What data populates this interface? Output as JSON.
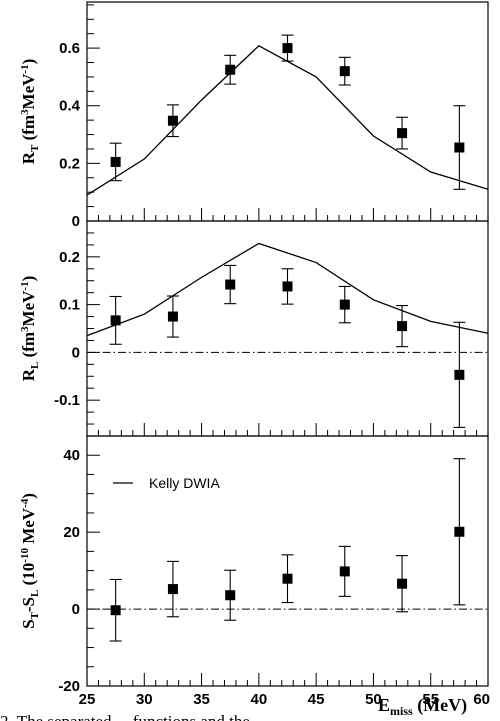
{
  "caption_fragment": "2. The separated ... functions and the",
  "legend": {
    "label": "Kelly DWIA"
  },
  "chart_data": [
    {
      "type": "scatter",
      "panel": "top",
      "ylabel_main": "R",
      "ylabel_sub": "T",
      "ylabel_unit_pre": " (fm",
      "ylabel_unit_sup": "3",
      "ylabel_unit_mid": "MeV",
      "ylabel_unit_sup2": "-1",
      "ylabel_unit_post": ")",
      "ylim": [
        0,
        0.76
      ],
      "yticks": [
        0,
        0.2,
        0.4,
        0.6
      ],
      "ytick_labels": [
        "0",
        "0.2",
        "0.4",
        "0.6"
      ],
      "zero_line": false,
      "series": [
        {
          "kind": "points",
          "x": [
            27.5,
            32.5,
            37.5,
            42.5,
            47.5,
            52.5,
            57.5
          ],
          "y": [
            0.205,
            0.348,
            0.525,
            0.6,
            0.52,
            0.305,
            0.255
          ],
          "err": [
            0.065,
            0.055,
            0.05,
            0.045,
            0.048,
            0.055,
            0.145
          ]
        },
        {
          "kind": "line",
          "name": "Kelly DWIA",
          "x": [
            25,
            30,
            35,
            40,
            45,
            50,
            55,
            60
          ],
          "y": [
            0.09,
            0.215,
            0.42,
            0.608,
            0.5,
            0.295,
            0.17,
            0.11
          ]
        }
      ]
    },
    {
      "type": "scatter",
      "panel": "middle",
      "ylabel_main": "R",
      "ylabel_sub": "L",
      "ylabel_unit_pre": " (fm",
      "ylabel_unit_sup": "3",
      "ylabel_unit_mid": "MeV",
      "ylabel_unit_sup2": "-1",
      "ylabel_unit_post": ")",
      "ylim": [
        -0.175,
        0.275
      ],
      "yticks": [
        -0.1,
        0,
        0.1,
        0.2
      ],
      "ytick_labels": [
        "-0.1",
        "0",
        "0.1",
        "0.2"
      ],
      "zero_line": true,
      "series": [
        {
          "kind": "points",
          "x": [
            27.5,
            32.5,
            37.5,
            42.5,
            47.5,
            52.5,
            57.5
          ],
          "y": [
            0.067,
            0.075,
            0.142,
            0.138,
            0.1,
            0.055,
            -0.047
          ],
          "err": [
            0.05,
            0.043,
            0.04,
            0.037,
            0.038,
            0.043,
            0.11
          ]
        },
        {
          "kind": "line",
          "name": "Kelly DWIA",
          "x": [
            25,
            30,
            35,
            40,
            45,
            50,
            55,
            60
          ],
          "y": [
            0.035,
            0.08,
            0.157,
            0.228,
            0.188,
            0.11,
            0.065,
            0.04
          ]
        }
      ]
    },
    {
      "type": "scatter",
      "panel": "bottom",
      "ylabel_main": "S",
      "ylabel_sub": "T",
      "ylabel_mid": "-S",
      "ylabel_sub2": "L",
      "ylabel_unit_pre": " (10",
      "ylabel_unit_sup": "-10",
      "ylabel_unit_mid": " MeV",
      "ylabel_unit_sup2": "-4",
      "ylabel_unit_post": ")",
      "ylim": [
        -20,
        45
      ],
      "yticks": [
        -20,
        0,
        20,
        40
      ],
      "ytick_labels": [
        "-20",
        "0",
        "20",
        "40"
      ],
      "zero_line": true,
      "series": [
        {
          "kind": "points",
          "x": [
            27.5,
            32.5,
            37.5,
            42.5,
            47.5,
            52.5,
            57.5
          ],
          "y": [
            -0.3,
            5.2,
            3.6,
            7.9,
            9.8,
            6.6,
            20.1
          ],
          "err": [
            8,
            7.2,
            6.5,
            6.2,
            6.5,
            7.3,
            19
          ]
        }
      ]
    }
  ],
  "xaxis": {
    "xlim": [
      25,
      60
    ],
    "xticks": [
      25,
      30,
      35,
      40,
      45,
      50,
      55,
      60
    ],
    "xtick_labels": [
      "25",
      "30",
      "35",
      "40",
      "45",
      "50",
      "55",
      "60"
    ],
    "xlabel_main": "E",
    "xlabel_sub": "miss",
    "xlabel_unit": " (MeV)"
  }
}
